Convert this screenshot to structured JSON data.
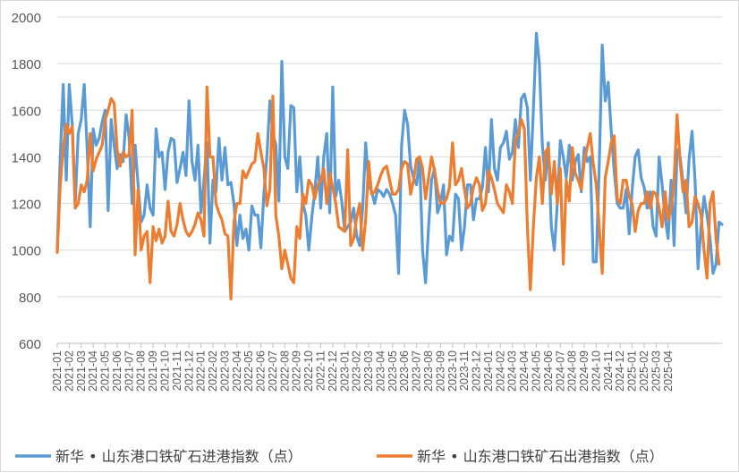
{
  "chart_data": {
    "type": "line",
    "title": "",
    "xlabel": "",
    "ylabel": "",
    "ylim": [
      600,
      2000
    ],
    "yticks": [
      600,
      800,
      1000,
      1200,
      1400,
      1600,
      1800,
      2000
    ],
    "grid": true,
    "legend_position": "bottom",
    "x_tick_labels": [
      "2021-01",
      "2021-02",
      "2021-03",
      "2021-04",
      "2021-05",
      "2021-06",
      "2021-07",
      "2021-08",
      "2021-09",
      "2021-10",
      "2021-11",
      "2021-12",
      "2022-01",
      "2022-02",
      "2022-03",
      "2022-04",
      "2022-05",
      "2022-06",
      "2022-07",
      "2022-08",
      "2022-09",
      "2022-10",
      "2022-11",
      "2022-12",
      "2023-01",
      "2023-02",
      "2023-03",
      "2023-04",
      "2023-05",
      "2023-06",
      "2023-07",
      "2023-08",
      "2023-09",
      "2023-10",
      "2023-11",
      "2023-12",
      "2024-01",
      "2024-02",
      "2024-03",
      "2024-04",
      "2024-05",
      "2024-06",
      "2024-07",
      "2024-08",
      "2024-09",
      "2024-10",
      "2024-11",
      "2024-12",
      "2025-01",
      "2025-02",
      "2025-03",
      "2025-04"
    ],
    "x_start": "2021-01",
    "points_per_month": 4,
    "series": [
      {
        "name": "新华 • 山东港口铁矿石进港指数（点）",
        "color": "#5b9bd5",
        "values": [
          1000,
          1400,
          1710,
          1300,
          1710,
          1540,
          1200,
          1500,
          1560,
          1710,
          1430,
          1100,
          1520,
          1450,
          1480,
          1550,
          1600,
          1170,
          1560,
          1450,
          1350,
          1410,
          1380,
          1580,
          1480,
          1200,
          1450,
          1280,
          1120,
          1150,
          1280,
          1180,
          1150,
          1520,
          1400,
          1420,
          1260,
          1420,
          1480,
          1470,
          1290,
          1350,
          1420,
          1320,
          1640,
          1380,
          1300,
          1450,
          1160,
          1300,
          1460,
          1030,
          1300,
          1250,
          1480,
          1300,
          1440,
          1280,
          1290,
          1200,
          1020,
          1150,
          1050,
          1090,
          1000,
          1190,
          1150,
          1150,
          1010,
          1240,
          1400,
          1640,
          1500,
          1450,
          1210,
          1810,
          1400,
          1350,
          1620,
          1610,
          1250,
          1400,
          1200,
          1150,
          1000,
          1140,
          1250,
          1400,
          1180,
          1400,
          1500,
          1160,
          1700,
          1230,
          1300,
          1210,
          1080,
          1100,
          1120,
          1180,
          1060,
          1020,
          1180,
          1460,
          1280,
          1250,
          1200,
          1260,
          1250,
          1230,
          1260,
          1240,
          1200,
          1150,
          900,
          1450,
          1600,
          1540,
          1360,
          1310,
          1280,
          1400,
          1000,
          860,
          1100,
          1300,
          1350,
          1160,
          1200,
          1280,
          980,
          1060,
          1040,
          1240,
          1220,
          1000,
          1100,
          1280,
          1280,
          1130,
          1220,
          1220,
          1270,
          1440,
          1250,
          1560,
          1350,
          1300,
          1440,
          1460,
          1510,
          1390,
          1420,
          1560,
          1440,
          1650,
          1670,
          1610,
          1300,
          1600,
          1930,
          1800,
          1450,
          1300,
          1460,
          1100,
          1000,
          1200,
          1470,
          1400,
          1310,
          1450,
          1300,
          1380,
          1410,
          1250,
          1440,
          1380,
          1400,
          950,
          950,
          1360,
          1880,
          1640,
          1720,
          1510,
          1340,
          1200,
          1180,
          1180,
          1260,
          1070,
          1260,
          1400,
          1430,
          1310,
          1270,
          1180,
          1250,
          1100,
          1060,
          1400,
          1280,
          1140,
          1050,
          1300,
          1020,
          1430,
          1400,
          1290,
          1160,
          1390,
          1510,
          1300,
          920,
          1100,
          1230,
          1150,
          1050,
          900,
          940,
          1120,
          1110
        ]
      },
      {
        "name": "新华 • 山东港口铁矿石出港指数（点）",
        "color": "#ed7d31",
        "values": [
          990,
          1280,
          1440,
          1540,
          1500,
          1530,
          1180,
          1200,
          1280,
          1250,
          1300,
          1500,
          1340,
          1390,
          1420,
          1450,
          1560,
          1600,
          1650,
          1630,
          1430,
          1360,
          1420,
          1400,
          1410,
          1600,
          980,
          1260,
          1000,
          1060,
          1080,
          860,
          1100,
          1040,
          1090,
          1030,
          1060,
          1210,
          1080,
          1060,
          1110,
          1200,
          1130,
          1080,
          1060,
          1080,
          1110,
          1160,
          1130,
          1060,
          1700,
          1400,
          1400,
          1200,
          1160,
          1130,
          1070,
          1060,
          790,
          1120,
          1200,
          1200,
          1340,
          1310,
          1340,
          1370,
          1380,
          1500,
          1420,
          1350,
          1190,
          1260,
          1660,
          1150,
          1060,
          920,
          1000,
          940,
          880,
          860,
          1100,
          1050,
          1240,
          1200,
          1300,
          1280,
          1220,
          1280,
          1300,
          1350,
          1200,
          1330,
          1270,
          1200,
          1100,
          1090,
          1080,
          1430,
          1020,
          1050,
          1140,
          1200,
          1000,
          1130,
          1380,
          1240,
          1250,
          1280,
          1320,
          1350,
          1360,
          1300,
          1240,
          1240,
          1260,
          1350,
          1380,
          1370,
          1240,
          1300,
          1390,
          1400,
          1350,
          1220,
          1310,
          1400,
          1340,
          1260,
          1200,
          1200,
          1220,
          1270,
          1460,
          1280,
          1300,
          1350,
          1260,
          1180,
          1200,
          1270,
          1310,
          1280,
          1170,
          1200,
          1340,
          1310,
          1260,
          1200,
          1180,
          1160,
          1280,
          1250,
          1200,
          1470,
          1500,
          1560,
          1520,
          1100,
          830,
          1100,
          1310,
          1400,
          1200,
          1420,
          1440,
          1240,
          1380,
          1200,
          1350,
          940,
          1300,
          1210,
          1440,
          1330,
          1300,
          1260,
          1380,
          1440,
          1500,
          1370,
          1280,
          1100,
          900,
          1310,
          1380,
          1460,
          1490,
          1220,
          1200,
          1300,
          1300,
          1230,
          1200,
          1080,
          1170,
          1200,
          1200,
          1250,
          1180,
          1250,
          1240,
          1180,
          1100,
          1250,
          1130,
          1180,
          1300,
          1580,
          1380,
          1250,
          1300,
          1100,
          1120,
          1230,
          1200,
          1150,
          1000,
          880,
          1200,
          1250,
          1050,
          940
        ]
      }
    ]
  }
}
